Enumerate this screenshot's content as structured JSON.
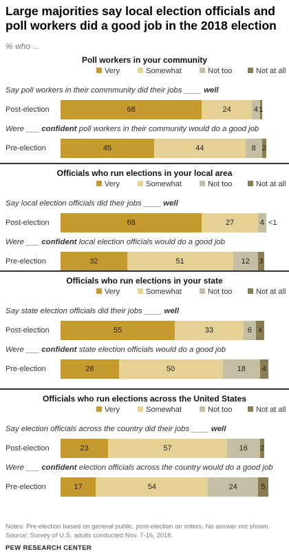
{
  "title": "Large majorities say local election officials and poll workers did a good job in the 2018 election",
  "subtitle": "% who ...",
  "legend": [
    "Very",
    "Somewhat",
    "Not too",
    "Not at all"
  ],
  "colors": {
    "very": "#c59a2f",
    "somewhat": "#e6d194",
    "not_too": "#c4bea4",
    "not_at_all": "#8b7d52"
  },
  "chart_data": {
    "type": "bar",
    "orientation": "horizontal-stacked",
    "categories": [
      "Very",
      "Somewhat",
      "Not too",
      "Not at all"
    ],
    "panels": [
      {
        "title": "Poll workers in your community",
        "rows": [
          {
            "question_pre": "Say poll workers in their commmunity did their jobs ____ ",
            "question_bold": "well",
            "question_post": "",
            "label": "Post-election",
            "values": [
              68,
              24,
              4,
              1
            ],
            "labels": [
              "68",
              "24",
              "4",
              "1"
            ],
            "outside": ""
          },
          {
            "question_pre": "Were ___ ",
            "question_bold": "confident",
            "question_post": " poll workers in their community would do a good job",
            "label": "Pre-election",
            "values": [
              45,
              44,
              8,
              2
            ],
            "labels": [
              "45",
              "44",
              "8",
              "2"
            ],
            "outside": ""
          }
        ]
      },
      {
        "title": "Officials who run elections in your local area",
        "rows": [
          {
            "question_pre": "Say local election officials did their jobs ____ ",
            "question_bold": "well",
            "question_post": "",
            "label": "Post-election",
            "values": [
              68,
              27,
              4,
              0
            ],
            "labels": [
              "68",
              "27",
              "4",
              ""
            ],
            "outside": "<1"
          },
          {
            "question_pre": "Were ___ ",
            "question_bold": "confident",
            "question_post": " local election officials would do a good job",
            "label": "Pre-election",
            "values": [
              32,
              51,
              12,
              3
            ],
            "labels": [
              "32",
              "51",
              "12",
              "3"
            ],
            "outside": ""
          }
        ]
      },
      {
        "title": "Officials who run elections in your state",
        "rows": [
          {
            "question_pre": "Say state election officials did their jobs ____ ",
            "question_bold": "well",
            "question_post": "",
            "label": "Post-election",
            "values": [
              55,
              33,
              6,
              4
            ],
            "labels": [
              "55",
              "33",
              "6",
              "4"
            ],
            "outside": ""
          },
          {
            "question_pre": "Were ___ ",
            "question_bold": "confident",
            "question_post": " state election officials would do a good job",
            "label": "Pre-election",
            "values": [
              28,
              50,
              18,
              4
            ],
            "labels": [
              "28",
              "50",
              "18",
              "4"
            ],
            "outside": ""
          }
        ]
      },
      {
        "title": "Officials who run elections across the United States",
        "rows": [
          {
            "question_pre": "Say election officials across the country did their jobs ____ ",
            "question_bold": "well",
            "question_post": "",
            "label": "Post-election",
            "values": [
              23,
              57,
              16,
              2
            ],
            "labels": [
              "23",
              "57",
              "16",
              "2"
            ],
            "outside": ""
          },
          {
            "question_pre": "Were ___ ",
            "question_bold": "confident",
            "question_post": " election officials across the country would do a good job",
            "label": "Pre-election",
            "values": [
              17,
              54,
              24,
              5
            ],
            "labels": [
              "17",
              "54",
              "24",
              "5"
            ],
            "outside": ""
          }
        ]
      }
    ]
  },
  "notes": "Notes: Pre-election based on general public, post-election on voters. No answer not shown.",
  "source": "Source: Survey of U.S. adults conducted Nov. 7-16, 2018.",
  "org": "PEW RESEARCH CENTER"
}
